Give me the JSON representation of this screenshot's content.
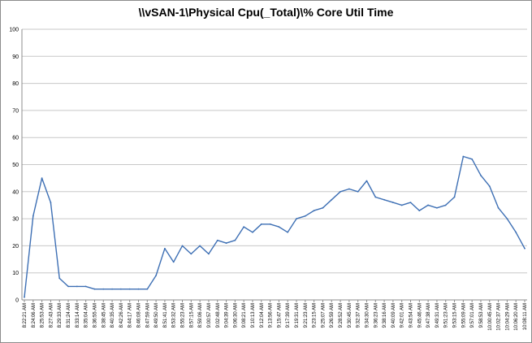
{
  "chart_data": {
    "type": "line",
    "title": "\\\\vSAN-1\\Physical Cpu(_Total)\\% Core Util Time",
    "xlabel": "",
    "ylabel": "",
    "ylim": [
      0,
      100
    ],
    "yticks": [
      0,
      10,
      20,
      30,
      40,
      50,
      60,
      70,
      80,
      90,
      100
    ],
    "grid": true,
    "legend": "none",
    "colors": {
      "line": "#3d6fb4",
      "grid": "#c8c8c8",
      "axis": "#8c8c8c"
    },
    "x": [
      "8:22:21 AM",
      "8:24:06 AM",
      "8:25:53 AM",
      "8:27:43 AM",
      "8:29:33 AM",
      "8:31:24 AM",
      "8:33:14 AM",
      "8:35:04 AM",
      "8:36:55 AM",
      "8:38:45 AM",
      "8:40:35 AM",
      "8:42:26 AM",
      "8:44:17 AM",
      "8:46:08 AM",
      "8:47:59 AM",
      "8:49:50 AM",
      "8:51:41 AM",
      "8:53:32 AM",
      "8:55:23 AM",
      "8:57:15 AM",
      "8:59:06 AM",
      "9:00:57 AM",
      "9:02:48 AM",
      "9:04:39 AM",
      "9:06:30 AM",
      "9:08:21 AM",
      "9:10:13 AM",
      "9:12:04 AM",
      "9:13:56 AM",
      "9:15:47 AM",
      "9:17:39 AM",
      "9:19:31 AM",
      "9:21:23 AM",
      "9:23:15 AM",
      "9:25:07 AM",
      "9:26:59 AM",
      "9:28:52 AM",
      "9:30:45 AM",
      "9:32:37 AM",
      "9:34:30 AM",
      "9:36:23 AM",
      "9:38:16 AM",
      "9:40:09 AM",
      "9:42:01 AM",
      "9:43:54 AM",
      "9:45:46 AM",
      "9:47:38 AM",
      "9:49:31 AM",
      "9:51:23 AM",
      "9:53:15 AM",
      "9:55:09 AM",
      "9:57:01 AM",
      "9:58:53 AM",
      "10:00:45 AM",
      "10:02:37 AM",
      "10:04:29 AM",
      "10:06:20 AM",
      "10:08:11 AM"
    ],
    "series": [
      {
        "values": [
          1,
          31,
          45,
          36,
          8,
          5,
          5,
          5,
          4,
          4,
          4,
          4,
          4,
          4,
          4,
          9,
          19,
          14,
          20,
          17,
          20,
          17,
          22,
          21,
          22,
          27,
          25,
          28,
          28,
          27,
          25,
          30,
          31,
          33,
          34,
          37,
          40,
          41,
          40,
          44,
          38,
          37,
          36,
          35,
          36,
          33,
          35,
          34,
          35,
          38,
          53,
          52,
          46,
          42,
          34,
          30,
          25,
          19
        ]
      }
    ]
  }
}
